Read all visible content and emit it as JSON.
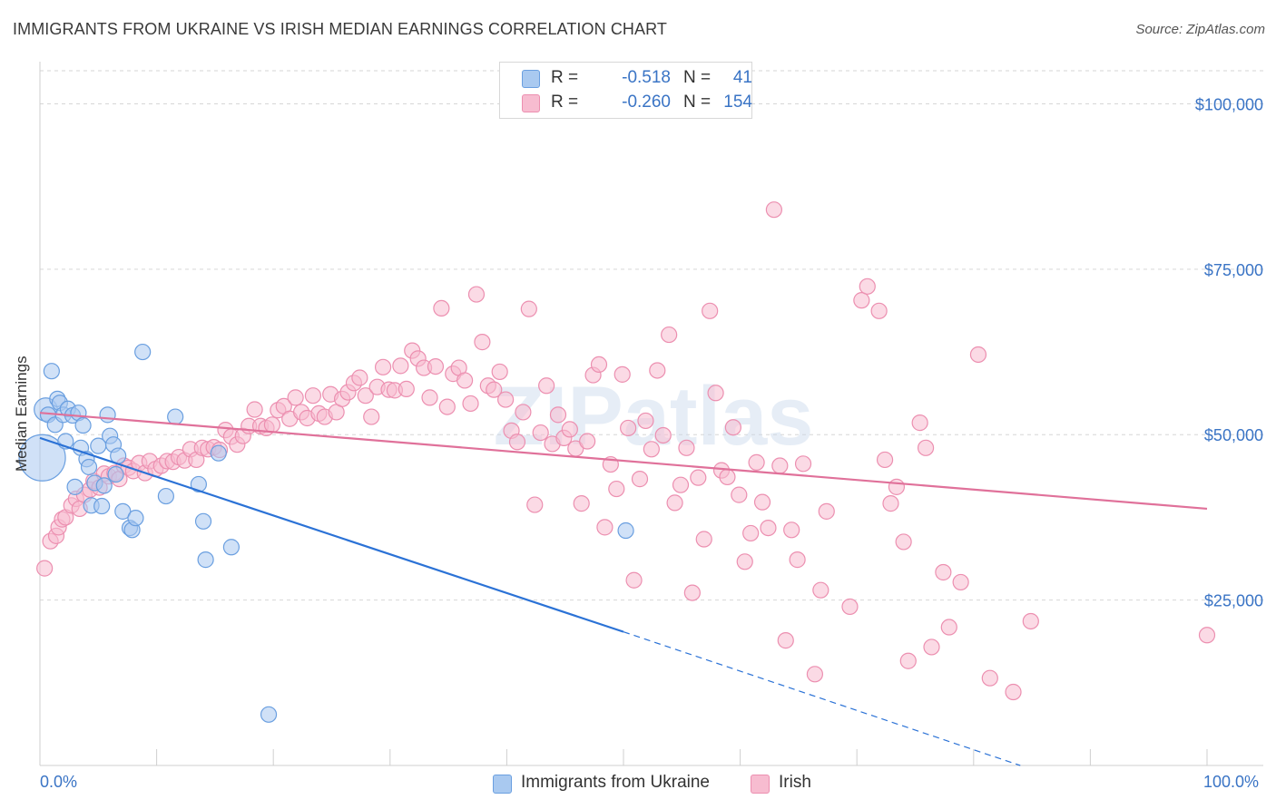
{
  "title": "IMMIGRANTS FROM UKRAINE VS IRISH MEDIAN EARNINGS CORRELATION CHART",
  "source": "Source: ZipAtlas.com",
  "watermark": "ZIPatlas",
  "colors": {
    "blue_fill": "#a9c9f0",
    "blue_stroke": "#6a9fe0",
    "blue_line": "#2b72d6",
    "pink_fill": "#f7bcd0",
    "pink_stroke": "#ec8fb0",
    "pink_line": "#e0719a",
    "axis_text": "#3a74c5",
    "grid": "#d6d6d6"
  },
  "legend_top": {
    "rows": [
      {
        "r_label": "R =",
        "r_value": "-0.518",
        "n_label": "N =",
        "n_value": "41",
        "color": "blue"
      },
      {
        "r_label": "R =",
        "r_value": "-0.260",
        "n_label": "N =",
        "n_value": "154",
        "color": "pink"
      }
    ]
  },
  "legend_bottom": {
    "items": [
      {
        "label": "Immigrants from Ukraine",
        "color": "blue"
      },
      {
        "label": "Irish",
        "color": "pink"
      }
    ]
  },
  "chart_data": {
    "type": "scatter",
    "title": "IMMIGRANTS FROM UKRAINE VS IRISH MEDIAN EARNINGS CORRELATION CHART",
    "xlabel": "",
    "ylabel": "Median Earnings",
    "xlim": [
      0,
      100
    ],
    "ylim": [
      0,
      105000
    ],
    "x_tick_labels": [
      "0.0%",
      "100.0%"
    ],
    "y_ticks": [
      25000,
      50000,
      75000,
      100000
    ],
    "y_tick_labels": [
      "$25,000",
      "$50,000",
      "$75,000",
      "$100,000"
    ],
    "grid": true,
    "legend_placement": "top-center",
    "series": [
      {
        "name": "Immigrants from Ukraine",
        "color": "blue",
        "points": [
          [
            0.2,
            46500
          ],
          [
            0.5,
            53800
          ],
          [
            0.7,
            53000
          ],
          [
            1.0,
            59600
          ],
          [
            1.3,
            51500
          ],
          [
            1.5,
            55400
          ],
          [
            1.7,
            54800
          ],
          [
            2.0,
            53000
          ],
          [
            2.2,
            49000
          ],
          [
            2.4,
            53900
          ],
          [
            2.8,
            52900
          ],
          [
            3.0,
            42100
          ],
          [
            3.3,
            53300
          ],
          [
            3.5,
            48000
          ],
          [
            3.7,
            51400
          ],
          [
            4.0,
            46300
          ],
          [
            4.2,
            45100
          ],
          [
            4.4,
            39300
          ],
          [
            4.7,
            42700
          ],
          [
            5.0,
            48300
          ],
          [
            5.3,
            39200
          ],
          [
            5.5,
            42300
          ],
          [
            5.8,
            53000
          ],
          [
            6.0,
            49800
          ],
          [
            6.3,
            48500
          ],
          [
            6.5,
            44000
          ],
          [
            6.7,
            46800
          ],
          [
            7.1,
            38400
          ],
          [
            7.7,
            35900
          ],
          [
            7.9,
            35600
          ],
          [
            8.2,
            37400
          ],
          [
            8.8,
            62500
          ],
          [
            10.8,
            40700
          ],
          [
            11.6,
            52700
          ],
          [
            13.6,
            42500
          ],
          [
            14.0,
            36900
          ],
          [
            14.2,
            31100
          ],
          [
            15.3,
            47200
          ],
          [
            16.4,
            33000
          ],
          [
            19.6,
            7700
          ],
          [
            50.2,
            35500
          ]
        ],
        "sizes": [
          3,
          1.5,
          1,
          1,
          1,
          1,
          1,
          1,
          1,
          1,
          1,
          1,
          1,
          1,
          1,
          1,
          1,
          1,
          1,
          1,
          1,
          1,
          1,
          1,
          1,
          1,
          1,
          1,
          1,
          1,
          1,
          1,
          1,
          1,
          1,
          1,
          1,
          1,
          1,
          1,
          1
        ],
        "trend_solid": [
          [
            0,
            49500
          ],
          [
            50,
            20200
          ]
        ],
        "trend_dashed": [
          [
            50,
            20200
          ],
          [
            84,
            0
          ]
        ]
      },
      {
        "name": "Irish",
        "color": "pink",
        "points": [
          [
            0.4,
            29800
          ],
          [
            0.9,
            33900
          ],
          [
            1.4,
            34700
          ],
          [
            1.6,
            36000
          ],
          [
            1.9,
            37200
          ],
          [
            2.2,
            37500
          ],
          [
            2.7,
            39300
          ],
          [
            3.1,
            40300
          ],
          [
            3.4,
            38800
          ],
          [
            3.8,
            40900
          ],
          [
            4.3,
            41700
          ],
          [
            4.6,
            43000
          ],
          [
            5.1,
            42000
          ],
          [
            5.5,
            44100
          ],
          [
            5.9,
            43700
          ],
          [
            6.4,
            44200
          ],
          [
            6.8,
            43300
          ],
          [
            7.2,
            45300
          ],
          [
            7.6,
            45000
          ],
          [
            8.0,
            44500
          ],
          [
            8.5,
            45700
          ],
          [
            9.0,
            44200
          ],
          [
            9.4,
            46000
          ],
          [
            9.9,
            44800
          ],
          [
            10.4,
            45300
          ],
          [
            10.9,
            46000
          ],
          [
            11.4,
            45900
          ],
          [
            11.9,
            46600
          ],
          [
            12.4,
            46100
          ],
          [
            12.9,
            47800
          ],
          [
            13.4,
            46200
          ],
          [
            13.9,
            48000
          ],
          [
            14.4,
            47800
          ],
          [
            14.9,
            48100
          ],
          [
            15.4,
            47700
          ],
          [
            15.9,
            50700
          ],
          [
            16.4,
            49700
          ],
          [
            16.9,
            48500
          ],
          [
            17.4,
            49800
          ],
          [
            17.9,
            51300
          ],
          [
            18.4,
            53800
          ],
          [
            18.9,
            51300
          ],
          [
            19.4,
            51000
          ],
          [
            19.9,
            51500
          ],
          [
            20.4,
            53700
          ],
          [
            20.9,
            54300
          ],
          [
            21.4,
            52400
          ],
          [
            21.9,
            55600
          ],
          [
            22.4,
            53400
          ],
          [
            22.9,
            52500
          ],
          [
            23.4,
            55900
          ],
          [
            23.9,
            53200
          ],
          [
            24.4,
            52700
          ],
          [
            24.9,
            56100
          ],
          [
            25.4,
            53400
          ],
          [
            25.9,
            55400
          ],
          [
            26.4,
            56400
          ],
          [
            26.9,
            57800
          ],
          [
            27.4,
            58600
          ],
          [
            27.9,
            55900
          ],
          [
            28.4,
            52700
          ],
          [
            28.9,
            57200
          ],
          [
            29.4,
            60200
          ],
          [
            29.9,
            56800
          ],
          [
            30.4,
            56700
          ],
          [
            30.9,
            60400
          ],
          [
            31.4,
            56900
          ],
          [
            31.9,
            62700
          ],
          [
            32.4,
            61500
          ],
          [
            32.9,
            60100
          ],
          [
            33.4,
            55600
          ],
          [
            33.9,
            60300
          ],
          [
            34.4,
            69100
          ],
          [
            34.9,
            54200
          ],
          [
            35.4,
            59200
          ],
          [
            35.9,
            60100
          ],
          [
            36.4,
            58200
          ],
          [
            36.9,
            54700
          ],
          [
            37.4,
            71200
          ],
          [
            37.9,
            64000
          ],
          [
            38.4,
            57400
          ],
          [
            38.9,
            56800
          ],
          [
            39.4,
            59500
          ],
          [
            39.9,
            55300
          ],
          [
            40.4,
            50600
          ],
          [
            40.9,
            48900
          ],
          [
            41.4,
            53400
          ],
          [
            41.9,
            69000
          ],
          [
            42.4,
            39400
          ],
          [
            42.9,
            50300
          ],
          [
            43.4,
            57400
          ],
          [
            43.9,
            48600
          ],
          [
            44.4,
            53000
          ],
          [
            44.9,
            49500
          ],
          [
            45.4,
            50800
          ],
          [
            45.9,
            47900
          ],
          [
            46.4,
            39600
          ],
          [
            46.9,
            49000
          ],
          [
            47.4,
            59000
          ],
          [
            47.9,
            60600
          ],
          [
            48.4,
            36000
          ],
          [
            48.9,
            45500
          ],
          [
            49.4,
            41800
          ],
          [
            49.9,
            59100
          ],
          [
            50.4,
            51000
          ],
          [
            50.9,
            28000
          ],
          [
            51.4,
            43300
          ],
          [
            51.9,
            52100
          ],
          [
            52.4,
            47800
          ],
          [
            52.9,
            59700
          ],
          [
            53.4,
            49900
          ],
          [
            53.9,
            65100
          ],
          [
            54.4,
            39700
          ],
          [
            54.9,
            42400
          ],
          [
            55.4,
            48000
          ],
          [
            55.9,
            26100
          ],
          [
            56.4,
            43500
          ],
          [
            56.9,
            34200
          ],
          [
            57.4,
            68700
          ],
          [
            57.9,
            56300
          ],
          [
            58.4,
            44600
          ],
          [
            58.9,
            43600
          ],
          [
            59.4,
            51100
          ],
          [
            59.9,
            40900
          ],
          [
            60.4,
            30800
          ],
          [
            60.9,
            35100
          ],
          [
            61.4,
            45800
          ],
          [
            61.9,
            39800
          ],
          [
            62.4,
            35900
          ],
          [
            62.9,
            84000
          ],
          [
            63.4,
            45300
          ],
          [
            63.9,
            18900
          ],
          [
            64.4,
            35600
          ],
          [
            64.9,
            31100
          ],
          [
            65.4,
            45600
          ],
          [
            66.4,
            13800
          ],
          [
            66.9,
            26500
          ],
          [
            67.4,
            38400
          ],
          [
            69.4,
            24000
          ],
          [
            70.4,
            70300
          ],
          [
            70.9,
            72400
          ],
          [
            71.9,
            68700
          ],
          [
            72.4,
            46200
          ],
          [
            72.9,
            39600
          ],
          [
            73.4,
            42100
          ],
          [
            74.4,
            15800
          ],
          [
            75.4,
            51800
          ],
          [
            75.9,
            48000
          ],
          [
            76.4,
            17900
          ],
          [
            77.4,
            29200
          ],
          [
            77.9,
            20900
          ],
          [
            78.9,
            27700
          ],
          [
            80.4,
            62100
          ],
          [
            81.4,
            13200
          ],
          [
            83.4,
            11100
          ],
          [
            84.9,
            21800
          ],
          [
            100.0,
            19700
          ],
          [
            74.0,
            33800
          ]
        ],
        "trend_solid": [
          [
            0,
            53300
          ],
          [
            100,
            38800
          ]
        ]
      }
    ]
  }
}
